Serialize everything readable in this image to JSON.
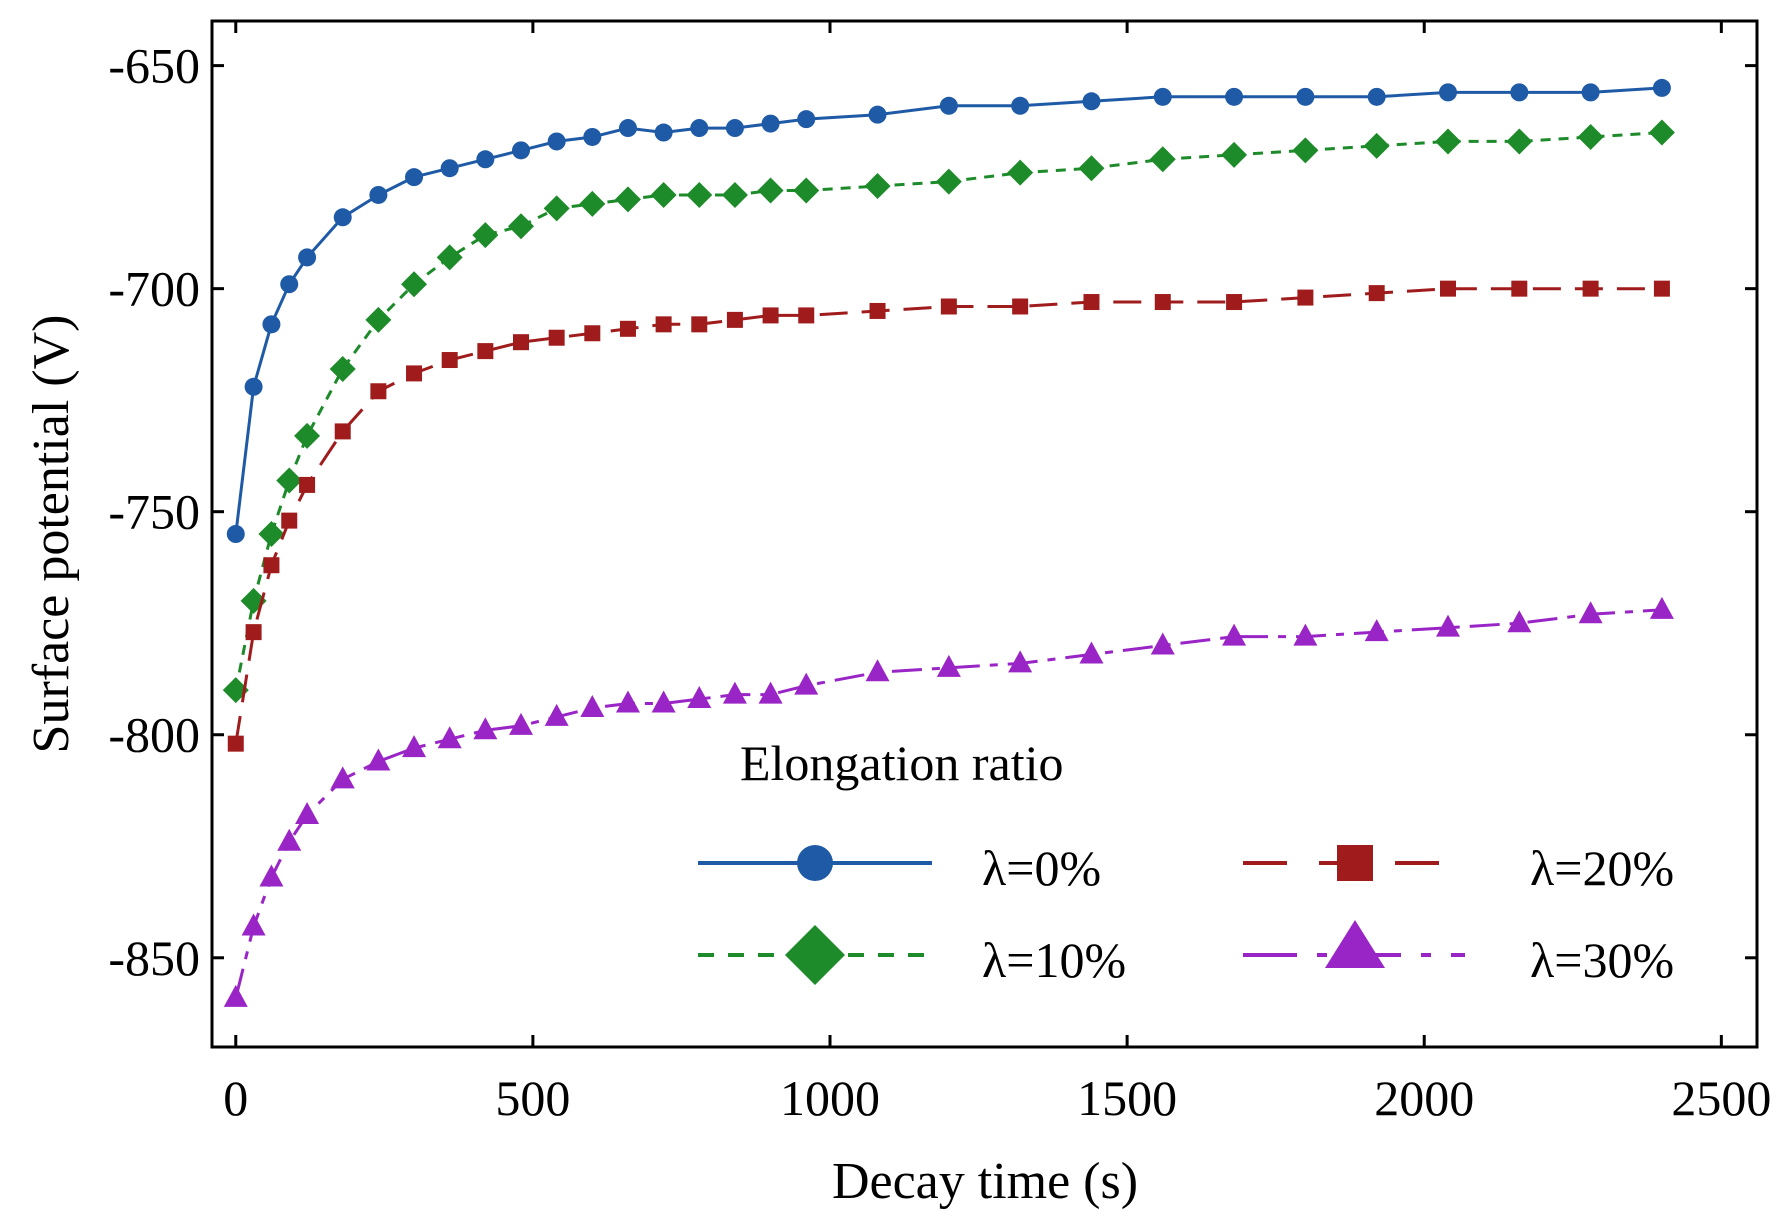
{
  "chart_data": {
    "type": "line",
    "title": "",
    "xlabel": "Decay time (s)",
    "ylabel": "Surface potential (V)",
    "xlim": [
      -40,
      2560
    ],
    "ylim": [
      -870,
      -640
    ],
    "xticks": [
      0,
      500,
      1000,
      1500,
      2000,
      2500
    ],
    "yticks": [
      -650,
      -700,
      -750,
      -800,
      -850
    ],
    "grid": false,
    "legend": {
      "title": "Elongation ratio",
      "placement": "bottom-right",
      "entries": [
        "λ=0%",
        "λ=20%",
        "λ=10%",
        "λ=30%"
      ]
    },
    "x": [
      0,
      30,
      60,
      90,
      120,
      180,
      240,
      300,
      360,
      420,
      480,
      540,
      600,
      660,
      720,
      780,
      840,
      900,
      960,
      1080,
      1200,
      1320,
      1440,
      1560,
      1680,
      1800,
      1920,
      2040,
      2160,
      2280,
      2400
    ],
    "series": [
      {
        "name": "λ=0%",
        "color": "#1f5aa6",
        "marker": "circle",
        "line": "solid",
        "values": [
          -755,
          -722,
          -708,
          -699,
          -693,
          -684,
          -679,
          -675,
          -673,
          -671,
          -669,
          -667,
          -666,
          -664,
          -665,
          -664,
          -664,
          -663,
          -662,
          -661,
          -659,
          -659,
          -658,
          -657,
          -657,
          -657,
          -657,
          -656,
          -656,
          -656,
          -655
        ]
      },
      {
        "name": "λ=10%",
        "color": "#1e8b2a",
        "marker": "diamond",
        "line": "dashed",
        "values": [
          -790,
          -770,
          -755,
          -743,
          -733,
          -718,
          -707,
          -699,
          -693,
          -688,
          -686,
          -682,
          -681,
          -680,
          -679,
          -679,
          -679,
          -678,
          -678,
          -677,
          -676,
          -674,
          -673,
          -671,
          -670,
          -669,
          -668,
          -667,
          -667,
          -666,
          -665
        ]
      },
      {
        "name": "λ=20%",
        "color": "#a01c1c",
        "marker": "square",
        "line": "longdash",
        "values": [
          -802,
          -777,
          -762,
          -752,
          -744,
          -732,
          -723,
          -719,
          -716,
          -714,
          -712,
          -711,
          -710,
          -709,
          -708,
          -708,
          -707,
          -706,
          -706,
          -705,
          -704,
          -704,
          -703,
          -703,
          -703,
          -702,
          -701,
          -700,
          -700,
          -700,
          -700
        ]
      },
      {
        "name": "λ=30%",
        "color": "#9a25c6",
        "marker": "triangle",
        "line": "dashdot",
        "values": [
          -859,
          -843,
          -832,
          -824,
          -818,
          -810,
          -806,
          -803,
          -801,
          -799,
          -798,
          -796,
          -794,
          -793,
          -793,
          -792,
          -791,
          -791,
          -789,
          -786,
          -785,
          -784,
          -782,
          -780,
          -778,
          -778,
          -777,
          -776,
          -775,
          -773,
          -772
        ]
      }
    ]
  }
}
